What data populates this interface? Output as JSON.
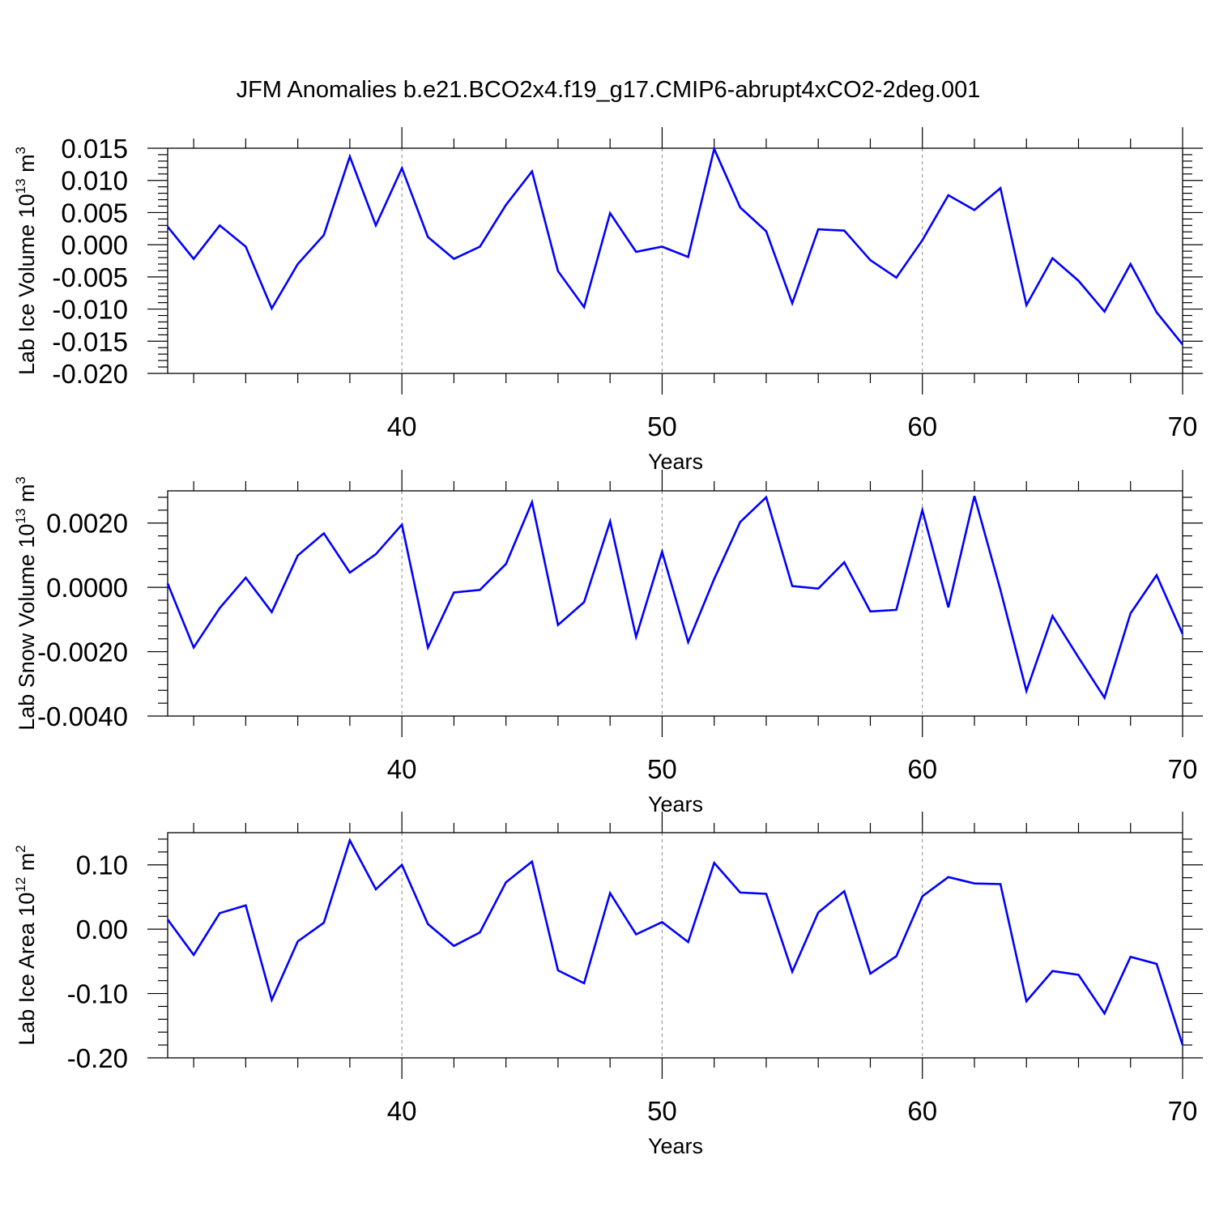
{
  "title": "JFM Anomalies b.e21.BCO2x4.f19_g17.CMIP6-abrupt4xCO2-2deg.001",
  "colors": {
    "line": "#0000ff",
    "axes": "#000000",
    "grid": "#8a8a8a",
    "background": "#ffffff"
  },
  "chart_data": [
    {
      "type": "line",
      "ylabel": "Lab Ice Volume 10",
      "ylabel_exp": "13",
      "ylabel_unit": " m",
      "ylabel_unit_exp": "3",
      "xlabel": "Years",
      "xlim": [
        31,
        70
      ],
      "ylim": [
        -0.02,
        0.015
      ],
      "grid": "vertical dashed at major x ticks",
      "x_ticks": [
        40,
        50,
        60,
        70
      ],
      "x_tick_labels": [
        "40",
        "50",
        "60",
        "70"
      ],
      "y_ticks": [
        -0.02,
        -0.015,
        -0.01,
        -0.005,
        0.0,
        0.005,
        0.01,
        0.015
      ],
      "y_tick_labels": [
        "-0.020",
        "-0.015",
        "-0.010",
        "-0.005",
        "0.000",
        "0.005",
        "0.010",
        "0.015"
      ],
      "series": [
        {
          "name": "Lab Ice Volume",
          "x": [
            31,
            32,
            33,
            34,
            35,
            36,
            37,
            38,
            39,
            40,
            41,
            42,
            43,
            44,
            45,
            46,
            47,
            48,
            49,
            50,
            51,
            52,
            53,
            54,
            55,
            56,
            57,
            58,
            59,
            60,
            61,
            62,
            63,
            64,
            65,
            66,
            67,
            68,
            69,
            70
          ],
          "values": [
            0.0028,
            -0.0022,
            0.003,
            -0.0003,
            -0.0099,
            -0.003,
            0.0015,
            0.0137,
            0.003,
            0.0119,
            0.0012,
            -0.0022,
            -0.0003,
            0.0062,
            0.0114,
            -0.0041,
            -0.0097,
            0.0049,
            -0.0011,
            -0.0003,
            -0.0019,
            0.0149,
            0.0058,
            0.0021,
            -0.0091,
            0.0024,
            0.0022,
            -0.0024,
            -0.0051,
            0.0007,
            0.0077,
            0.0054,
            0.0088,
            -0.0094,
            -0.0021,
            -0.0056,
            -0.0104,
            -0.003,
            -0.0105,
            -0.0155
          ]
        }
      ]
    },
    {
      "type": "line",
      "ylabel": "Lab Snow Volume 10",
      "ylabel_exp": "13",
      "ylabel_unit": " m",
      "ylabel_unit_exp": "3",
      "xlabel": "Years",
      "xlim": [
        31,
        70
      ],
      "ylim": [
        -0.004,
        0.003
      ],
      "grid": "vertical dashed at major x ticks",
      "x_ticks": [
        40,
        50,
        60,
        70
      ],
      "x_tick_labels": [
        "40",
        "50",
        "60",
        "70"
      ],
      "y_ticks": [
        -0.004,
        -0.002,
        0.0,
        0.002
      ],
      "y_tick_labels": [
        "-0.0040",
        "-0.0020",
        "0.0000",
        "0.0020"
      ],
      "series": [
        {
          "name": "Lab Snow Volume",
          "x": [
            31,
            32,
            33,
            34,
            35,
            36,
            37,
            38,
            39,
            40,
            41,
            42,
            43,
            44,
            45,
            46,
            47,
            48,
            49,
            50,
            51,
            52,
            53,
            54,
            55,
            56,
            57,
            58,
            59,
            60,
            61,
            62,
            63,
            64,
            65,
            66,
            67,
            68,
            69,
            70
          ],
          "values": [
            0.00012,
            -0.00187,
            -0.00064,
            0.0003,
            -0.00077,
            0.00099,
            0.00168,
            0.00046,
            0.00103,
            0.00195,
            -0.00187,
            -0.00016,
            -8e-05,
            0.00073,
            0.00265,
            -0.00117,
            -0.00046,
            0.00205,
            -0.00154,
            0.00111,
            -0.0017,
            0.00026,
            0.00203,
            0.0028,
            4e-05,
            -4e-05,
            0.00078,
            -0.00075,
            -0.0007,
            0.0024,
            -0.00062,
            0.00284,
            -8e-05,
            -0.00322,
            -0.00089,
            -0.00218,
            -0.00343,
            -0.00081,
            0.00038,
            -0.00145
          ]
        }
      ]
    },
    {
      "type": "line",
      "ylabel": "Lab Ice Area 10",
      "ylabel_exp": "12",
      "ylabel_unit": " m",
      "ylabel_unit_exp": "2",
      "xlabel": "Years",
      "xlim": [
        31,
        70
      ],
      "ylim": [
        -0.2,
        0.15
      ],
      "grid": "vertical dashed at major x ticks",
      "x_ticks": [
        40,
        50,
        60,
        70
      ],
      "x_tick_labels": [
        "40",
        "50",
        "60",
        "70"
      ],
      "y_ticks": [
        -0.2,
        -0.1,
        0.0,
        0.1
      ],
      "y_tick_labels": [
        "-0.20",
        "-0.10",
        "0.00",
        "0.10"
      ],
      "series": [
        {
          "name": "Lab Ice Area",
          "x": [
            31,
            32,
            33,
            34,
            35,
            36,
            37,
            38,
            39,
            40,
            41,
            42,
            43,
            44,
            45,
            46,
            47,
            48,
            49,
            50,
            51,
            52,
            53,
            54,
            55,
            56,
            57,
            58,
            59,
            60,
            61,
            62,
            63,
            64,
            65,
            66,
            67,
            68,
            69,
            70
          ],
          "values": [
            0.015,
            -0.04,
            0.025,
            0.037,
            -0.11,
            -0.019,
            0.01,
            0.138,
            0.062,
            0.1,
            0.008,
            -0.026,
            -0.005,
            0.073,
            0.105,
            -0.064,
            -0.084,
            0.056,
            -0.008,
            0.011,
            -0.02,
            0.103,
            0.057,
            0.055,
            -0.066,
            0.026,
            0.059,
            -0.069,
            -0.042,
            0.051,
            0.081,
            0.071,
            0.07,
            -0.112,
            -0.065,
            -0.071,
            -0.131,
            -0.043,
            -0.054,
            -0.18
          ]
        }
      ]
    }
  ]
}
